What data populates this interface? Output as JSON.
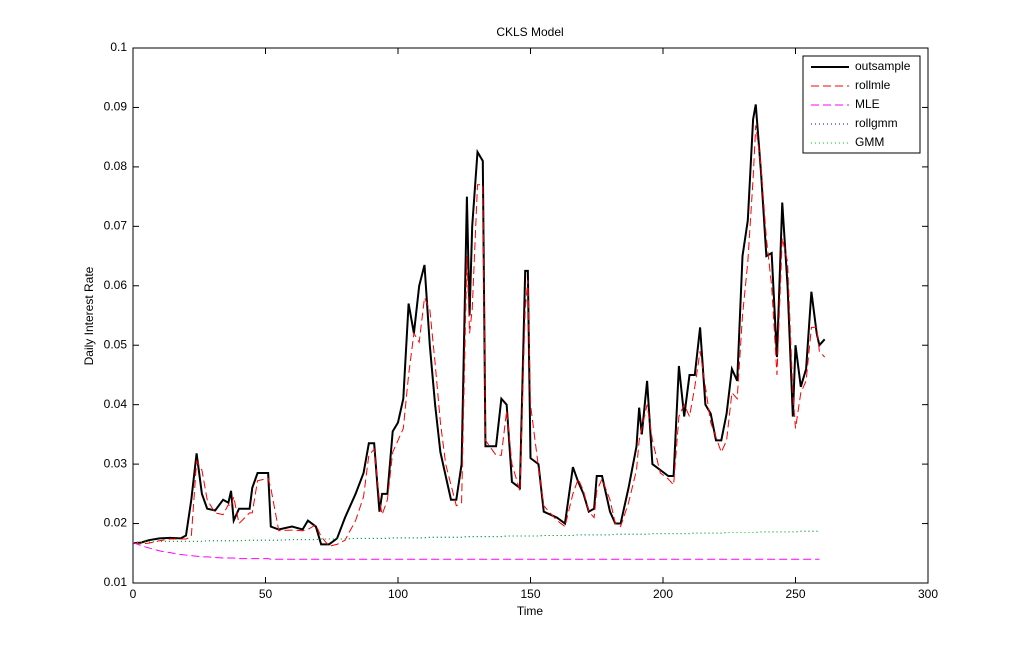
{
  "chart_data": {
    "type": "line",
    "title": "CKLS Model",
    "x_label": "Time",
    "y_label": "Daily Interest Rate",
    "xlim": [
      0,
      300
    ],
    "xticks": [
      0,
      50,
      100,
      150,
      200,
      250,
      300
    ],
    "ylim": [
      0.01,
      0.1
    ],
    "yticks": [
      0.01,
      0.02,
      0.03,
      0.04,
      0.05,
      0.06,
      0.07,
      0.08,
      0.09,
      0.1
    ],
    "legend": "top-right",
    "x": [
      0,
      3,
      6,
      10,
      14,
      18,
      20,
      22,
      24,
      26,
      28,
      31,
      34,
      36,
      37,
      38,
      40,
      44,
      45,
      47,
      51,
      52,
      55,
      60,
      64,
      66,
      69,
      71,
      74,
      77,
      80,
      84,
      87,
      89,
      91,
      93,
      94,
      96,
      98,
      100,
      102,
      104,
      106,
      108,
      110,
      112,
      114,
      116,
      118,
      120,
      122,
      124,
      126,
      127,
      128,
      130,
      132,
      133,
      137,
      139,
      141,
      143,
      146,
      148,
      149,
      150,
      153,
      155,
      160,
      163,
      166,
      168,
      170,
      172,
      174,
      175,
      177,
      180,
      182,
      184,
      187,
      190,
      191,
      192,
      194,
      196,
      199,
      202,
      204,
      206,
      208,
      210,
      212,
      214,
      216,
      218,
      220,
      222,
      224,
      226,
      228,
      230,
      232,
      234,
      235,
      237,
      239,
      241,
      243,
      245,
      247,
      249,
      250,
      252,
      254,
      256,
      258,
      259,
      261
    ],
    "series": [
      {
        "name": "outsample",
        "color": "#000000",
        "style": "solid",
        "values": [
          0.0167,
          0.0168,
          0.0172,
          0.0175,
          0.0176,
          0.0175,
          0.018,
          0.024,
          0.0318,
          0.025,
          0.0225,
          0.0222,
          0.024,
          0.0235,
          0.0255,
          0.0205,
          0.0225,
          0.0225,
          0.026,
          0.0285,
          0.0285,
          0.0195,
          0.019,
          0.0195,
          0.019,
          0.0205,
          0.0195,
          0.0165,
          0.0165,
          0.0175,
          0.021,
          0.025,
          0.0285,
          0.0335,
          0.0335,
          0.022,
          0.025,
          0.025,
          0.0355,
          0.037,
          0.041,
          0.057,
          0.052,
          0.06,
          0.0635,
          0.05,
          0.04,
          0.032,
          0.028,
          0.024,
          0.024,
          0.03,
          0.075,
          0.055,
          0.07,
          0.0825,
          0.081,
          0.033,
          0.033,
          0.041,
          0.04,
          0.027,
          0.026,
          0.0625,
          0.0625,
          0.031,
          0.03,
          0.022,
          0.021,
          0.02,
          0.0295,
          0.027,
          0.025,
          0.022,
          0.0225,
          0.028,
          0.028,
          0.022,
          0.02,
          0.02,
          0.026,
          0.033,
          0.0395,
          0.035,
          0.044,
          0.03,
          0.029,
          0.028,
          0.028,
          0.0465,
          0.038,
          0.045,
          0.045,
          0.053,
          0.04,
          0.0385,
          0.034,
          0.034,
          0.0385,
          0.046,
          0.044,
          0.065,
          0.071,
          0.088,
          0.0905,
          0.079,
          0.065,
          0.0655,
          0.048,
          0.074,
          0.06,
          0.038,
          0.05,
          0.043,
          0.046,
          0.059,
          0.052,
          0.05,
          0.051
        ]
      },
      {
        "name": "rollmle",
        "color": "#ff0000",
        "style": "dashed",
        "values": [
          0.0167,
          0.0166,
          0.0167,
          0.0171,
          0.0174,
          0.0174,
          0.0174,
          0.0178,
          0.0305,
          0.029,
          0.024,
          0.0218,
          0.0215,
          0.0232,
          0.0228,
          0.0245,
          0.02,
          0.0218,
          0.0218,
          0.0272,
          0.0276,
          0.026,
          0.0188,
          0.0189,
          0.0188,
          0.019,
          0.0198,
          0.0178,
          0.0162,
          0.0165,
          0.0172,
          0.0205,
          0.0245,
          0.0315,
          0.0325,
          0.024,
          0.0215,
          0.024,
          0.032,
          0.034,
          0.036,
          0.045,
          0.052,
          0.0505,
          0.058,
          0.056,
          0.047,
          0.037,
          0.03,
          0.0265,
          0.023,
          0.0235,
          0.065,
          0.052,
          0.056,
          0.077,
          0.077,
          0.034,
          0.0315,
          0.0315,
          0.039,
          0.03,
          0.0255,
          0.056,
          0.061,
          0.04,
          0.0295,
          0.023,
          0.0205,
          0.0195,
          0.025,
          0.0275,
          0.0255,
          0.022,
          0.021,
          0.0255,
          0.0275,
          0.024,
          0.02,
          0.0195,
          0.0235,
          0.029,
          0.034,
          0.036,
          0.04,
          0.034,
          0.0285,
          0.0275,
          0.0265,
          0.038,
          0.04,
          0.038,
          0.043,
          0.049,
          0.043,
          0.037,
          0.0345,
          0.032,
          0.034,
          0.042,
          0.041,
          0.055,
          0.064,
          0.078,
          0.087,
          0.08,
          0.068,
          0.06,
          0.045,
          0.068,
          0.064,
          0.042,
          0.036,
          0.042,
          0.044,
          0.053,
          0.053,
          0.049,
          0.048
        ]
      },
      {
        "name": "MLE",
        "color": "#ff00ff",
        "style": "dashed",
        "values": [
          0.0168,
          0.0163,
          0.0159,
          0.0154,
          0.0151,
          0.0148,
          0.0147,
          0.0146,
          0.0145,
          0.0144,
          0.0144,
          0.0143,
          0.0142,
          0.0142,
          0.0142,
          0.0142,
          0.0141,
          0.0141,
          0.0141,
          0.0141,
          0.0141,
          0.014,
          0.014,
          0.014,
          0.014,
          0.014,
          0.014,
          0.014,
          0.014,
          0.014,
          0.014,
          0.014,
          0.014,
          0.014,
          0.014,
          0.014,
          0.014,
          0.014,
          0.014,
          0.014,
          0.014,
          0.014,
          0.014,
          0.014,
          0.014,
          0.014,
          0.014,
          0.014,
          0.014,
          0.014,
          0.014,
          0.014,
          0.014,
          0.014,
          0.014,
          0.014,
          0.014,
          0.014,
          0.014,
          0.014,
          0.014,
          0.014,
          0.014,
          0.014,
          0.014,
          0.014,
          0.014,
          0.014,
          0.014,
          0.014,
          0.014,
          0.014,
          0.014,
          0.014,
          0.014,
          0.014,
          0.014,
          0.014,
          0.014,
          0.014,
          0.014,
          0.014,
          0.014,
          0.014,
          0.014,
          0.014,
          0.014,
          0.014,
          0.014,
          0.014,
          0.014,
          0.014,
          0.014,
          0.014,
          0.014,
          0.014,
          0.014,
          0.014,
          0.014,
          0.014,
          0.014,
          0.014,
          0.014,
          0.014,
          0.014,
          0.014,
          0.014,
          0.014,
          0.014,
          0.014,
          0.014,
          0.014,
          0.014,
          0.014,
          0.014,
          0.014,
          0.014,
          0.014,
          null
        ]
      },
      {
        "name": "rollgmm",
        "color": "#0000ff",
        "style": "dotted",
        "values": [
          0.0168,
          0.0169,
          0.0169,
          0.017,
          0.017,
          0.017,
          0.017,
          0.017,
          0.017,
          0.017,
          0.0171,
          0.0171,
          0.0171,
          0.0171,
          0.0171,
          0.0171,
          0.0171,
          0.0172,
          0.0172,
          0.0172,
          0.0172,
          0.0172,
          0.0172,
          0.0173,
          0.0173,
          0.0173,
          0.0173,
          0.0174,
          0.0174,
          0.0174,
          0.0174,
          0.0175,
          0.0175,
          0.0175,
          0.0175,
          0.0175,
          0.0175,
          0.0175,
          0.0176,
          0.0176,
          0.0176,
          0.0176,
          0.0176,
          0.0176,
          0.0176,
          0.0177,
          0.0177,
          0.0177,
          0.0177,
          0.0177,
          0.0177,
          0.0177,
          0.0178,
          0.0178,
          0.0178,
          0.0178,
          0.0178,
          0.0178,
          0.0178,
          0.0178,
          0.0179,
          0.0179,
          0.0179,
          0.0179,
          0.0179,
          0.0179,
          0.0179,
          0.018,
          0.018,
          0.018,
          0.018,
          0.0181,
          0.0181,
          0.0181,
          0.0181,
          0.0181,
          0.0181,
          0.0181,
          0.0182,
          0.0182,
          0.0182,
          0.0182,
          0.0182,
          0.0182,
          0.0182,
          0.0183,
          0.0183,
          0.0183,
          0.0183,
          0.0183,
          0.0183,
          0.0183,
          0.0184,
          0.0184,
          0.0184,
          0.0184,
          0.0184,
          0.0184,
          0.0185,
          0.0185,
          0.0185,
          0.0185,
          0.0185,
          0.0185,
          0.0185,
          0.0186,
          0.0186,
          0.0186,
          0.0186,
          0.0186,
          0.0186,
          0.0186,
          0.0186,
          0.0187,
          0.0187,
          0.0187,
          0.0187,
          0.0187,
          null
        ]
      },
      {
        "name": "GMM",
        "color": "#00cc00",
        "style": "dotted",
        "values": [
          0.0168,
          0.0169,
          0.0169,
          0.017,
          0.017,
          0.017,
          0.017,
          0.017,
          0.017,
          0.017,
          0.0171,
          0.0171,
          0.0171,
          0.0171,
          0.0171,
          0.0171,
          0.0171,
          0.0172,
          0.0172,
          0.0172,
          0.0172,
          0.0172,
          0.0172,
          0.0173,
          0.0173,
          0.0173,
          0.0173,
          0.0174,
          0.0174,
          0.0174,
          0.0174,
          0.0175,
          0.0175,
          0.0175,
          0.0175,
          0.0175,
          0.0175,
          0.0175,
          0.0176,
          0.0176,
          0.0176,
          0.0176,
          0.0176,
          0.0176,
          0.0176,
          0.0177,
          0.0177,
          0.0177,
          0.0177,
          0.0177,
          0.0177,
          0.0177,
          0.0178,
          0.0178,
          0.0178,
          0.0178,
          0.0178,
          0.0178,
          0.0178,
          0.0178,
          0.0179,
          0.0179,
          0.0179,
          0.0179,
          0.0179,
          0.0179,
          0.0179,
          0.018,
          0.018,
          0.018,
          0.018,
          0.0181,
          0.0181,
          0.0181,
          0.0181,
          0.0181,
          0.0181,
          0.0181,
          0.0182,
          0.0182,
          0.0182,
          0.0182,
          0.0182,
          0.0182,
          0.0182,
          0.0183,
          0.0183,
          0.0183,
          0.0183,
          0.0183,
          0.0183,
          0.0183,
          0.0184,
          0.0184,
          0.0184,
          0.0184,
          0.0184,
          0.0184,
          0.0185,
          0.0185,
          0.0185,
          0.0185,
          0.0185,
          0.0185,
          0.0185,
          0.0186,
          0.0186,
          0.0186,
          0.0186,
          0.0186,
          0.0186,
          0.0186,
          0.0186,
          0.0187,
          0.0187,
          0.0187,
          0.0187,
          0.0187,
          null
        ]
      }
    ]
  }
}
